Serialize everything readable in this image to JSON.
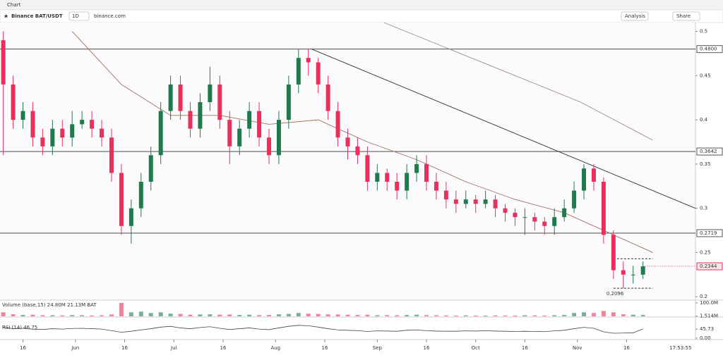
{
  "chart_data": {
    "type": "candlestick",
    "header": "Chart",
    "symbol": "Binance BAT/USDT",
    "interval": "1D",
    "source": "binance.com",
    "buttons": [
      "Analysis",
      "Share"
    ],
    "up_color": "#1f7a4d",
    "down_color": "#e8315a",
    "x": [
      -6,
      -3,
      0,
      3,
      6,
      9,
      12,
      15,
      18,
      21,
      24,
      27,
      30,
      33,
      36,
      39,
      42,
      45,
      48,
      51,
      54,
      57,
      60,
      63,
      66,
      69,
      72,
      75,
      78,
      81,
      84,
      87,
      90,
      93,
      96,
      99,
      102,
      105,
      108,
      111,
      114,
      117,
      120,
      123,
      126,
      129,
      132,
      135,
      138,
      141,
      144,
      147,
      150,
      153,
      156,
      159,
      162,
      165,
      168,
      171,
      174,
      177,
      180,
      183,
      186,
      189
    ],
    "open": [
      0.49,
      0.44,
      0.4,
      0.41,
      0.38,
      0.37,
      0.39,
      0.38,
      0.395,
      0.4,
      0.39,
      0.38,
      0.34,
      0.28,
      0.3,
      0.33,
      0.36,
      0.41,
      0.44,
      0.41,
      0.39,
      0.42,
      0.44,
      0.4,
      0.37,
      0.39,
      0.41,
      0.38,
      0.36,
      0.4,
      0.44,
      0.47,
      0.465,
      0.44,
      0.41,
      0.38,
      0.37,
      0.36,
      0.33,
      0.34,
      0.33,
      0.32,
      0.34,
      0.35,
      0.33,
      0.32,
      0.31,
      0.305,
      0.31,
      0.305,
      0.31,
      0.3,
      0.295,
      0.29,
      0.29,
      0.285,
      0.28,
      0.29,
      0.3,
      0.32,
      0.345,
      0.33,
      0.27,
      0.23,
      0.225,
      0.225
    ],
    "high": [
      0.5,
      0.45,
      0.42,
      0.42,
      0.39,
      0.4,
      0.4,
      0.41,
      0.41,
      0.41,
      0.4,
      0.39,
      0.35,
      0.31,
      0.34,
      0.37,
      0.42,
      0.45,
      0.45,
      0.42,
      0.43,
      0.46,
      0.45,
      0.41,
      0.4,
      0.42,
      0.42,
      0.39,
      0.41,
      0.45,
      0.48,
      0.48,
      0.47,
      0.45,
      0.42,
      0.39,
      0.38,
      0.37,
      0.35,
      0.345,
      0.34,
      0.35,
      0.36,
      0.36,
      0.34,
      0.33,
      0.32,
      0.32,
      0.315,
      0.32,
      0.315,
      0.305,
      0.3,
      0.3,
      0.295,
      0.29,
      0.3,
      0.31,
      0.33,
      0.35,
      0.35,
      0.335,
      0.275,
      0.24,
      0.235,
      0.24
    ],
    "low": [
      0.36,
      0.39,
      0.39,
      0.37,
      0.36,
      0.36,
      0.37,
      0.37,
      0.39,
      0.38,
      0.37,
      0.33,
      0.27,
      0.26,
      0.29,
      0.32,
      0.35,
      0.4,
      0.4,
      0.38,
      0.38,
      0.41,
      0.39,
      0.35,
      0.36,
      0.38,
      0.37,
      0.35,
      0.35,
      0.39,
      0.43,
      0.45,
      0.43,
      0.4,
      0.37,
      0.355,
      0.35,
      0.32,
      0.32,
      0.32,
      0.31,
      0.31,
      0.33,
      0.32,
      0.31,
      0.3,
      0.295,
      0.3,
      0.295,
      0.3,
      0.29,
      0.285,
      0.28,
      0.27,
      0.275,
      0.27,
      0.27,
      0.285,
      0.295,
      0.31,
      0.32,
      0.26,
      0.22,
      0.2096,
      0.215,
      0.22
    ],
    "close": [
      0.44,
      0.4,
      0.41,
      0.38,
      0.37,
      0.39,
      0.38,
      0.395,
      0.4,
      0.39,
      0.38,
      0.34,
      0.28,
      0.3,
      0.33,
      0.36,
      0.41,
      0.44,
      0.41,
      0.39,
      0.42,
      0.44,
      0.4,
      0.37,
      0.39,
      0.41,
      0.38,
      0.36,
      0.4,
      0.44,
      0.47,
      0.465,
      0.44,
      0.41,
      0.38,
      0.37,
      0.36,
      0.33,
      0.34,
      0.33,
      0.32,
      0.34,
      0.35,
      0.33,
      0.32,
      0.31,
      0.305,
      0.31,
      0.305,
      0.31,
      0.3,
      0.295,
      0.29,
      0.29,
      0.285,
      0.28,
      0.29,
      0.3,
      0.32,
      0.345,
      0.33,
      0.27,
      0.23,
      0.225,
      0.225,
      0.2344
    ],
    "xlim": [
      -7,
      205
    ],
    "xticks": [
      {
        "value": 0,
        "label": "16"
      },
      {
        "value": 16,
        "label": "Jun"
      },
      {
        "value": 31,
        "label": "16"
      },
      {
        "value": 46,
        "label": "Jul"
      },
      {
        "value": 61,
        "label": "16"
      },
      {
        "value": 77,
        "label": "Aug"
      },
      {
        "value": 92,
        "label": "16"
      },
      {
        "value": 108,
        "label": "Sep"
      },
      {
        "value": 123,
        "label": "16"
      },
      {
        "value": 138,
        "label": "Oct"
      },
      {
        "value": 153,
        "label": "16"
      },
      {
        "value": 169,
        "label": "Nov"
      },
      {
        "value": 184,
        "label": "16"
      }
    ],
    "ylim": [
      0.197,
      0.51
    ],
    "yticks": [
      0.5,
      0.45,
      0.4,
      0.35,
      0.3,
      0.25,
      0.2
    ],
    "levels": [
      {
        "value": 0.48,
        "label": "0.4800"
      },
      {
        "value": 0.3642,
        "label": "0.3642"
      },
      {
        "value": 0.2719,
        "label": "0.2719"
      }
    ],
    "last_price": 0.2344,
    "range_box": {
      "x": [
        180,
        192
      ],
      "values": [
        0.2096,
        0.243
      ]
    },
    "trendline": {
      "x": [
        88,
        205
      ],
      "values": [
        0.48,
        0.3
      ]
    },
    "overlays": [
      {
        "color": "#a0705a",
        "x": [
          15,
          30,
          45,
          60,
          75,
          90,
          105,
          120,
          135,
          150,
          165,
          180,
          192
        ],
        "values": [
          0.5,
          0.44,
          0.405,
          0.405,
          0.395,
          0.4,
          0.375,
          0.355,
          0.33,
          0.31,
          0.295,
          0.27,
          0.25
        ]
      },
      {
        "color": "#a08a80",
        "x": [
          110,
          130,
          150,
          170,
          192
        ],
        "values": [
          0.51,
          0.48,
          0.45,
          0.42,
          0.377
        ]
      }
    ],
    "volume": {
      "legend": "Volume (base,15) 24.80M 21.13M BAT",
      "values": [
        30,
        15,
        10,
        12,
        8,
        8,
        7,
        9,
        8,
        7,
        8,
        14,
        100,
        30,
        35,
        25,
        30,
        20,
        18,
        12,
        14,
        15,
        12,
        14,
        10,
        12,
        9,
        10,
        15,
        18,
        25,
        20,
        18,
        15,
        14,
        12,
        10,
        12,
        8,
        9,
        8,
        10,
        12,
        9,
        8,
        7,
        6,
        7,
        6,
        6,
        7,
        6,
        6,
        8,
        7,
        6,
        8,
        10,
        25,
        30,
        25,
        40,
        30,
        15,
        12,
        10
      ],
      "ylim": [
        0,
        110
      ],
      "ticks": [
        {
          "value": 100,
          "label": "100.0M"
        },
        {
          "value": 1.514,
          "label": "1.514M"
        }
      ]
    },
    "rsi": {
      "legend": "RSI (14) 46.75",
      "color": "#444444",
      "values": [
        55,
        48,
        50,
        45,
        44,
        48,
        46,
        49,
        50,
        48,
        46,
        38,
        30,
        35,
        42,
        48,
        56,
        60,
        52,
        48,
        54,
        58,
        50,
        44,
        48,
        52,
        46,
        43,
        52,
        60,
        65,
        63,
        56,
        48,
        42,
        40,
        38,
        34,
        37,
        36,
        35,
        40,
        42,
        38,
        36,
        35,
        35,
        37,
        36,
        38,
        36,
        35,
        34,
        35,
        34,
        33,
        37,
        40,
        48,
        55,
        50,
        32,
        25,
        26,
        27,
        46.75
      ],
      "ylim": [
        0,
        100
      ],
      "ticks": [
        45.73,
        {
          "value": 0,
          "label": "0.00"
        }
      ]
    },
    "time": "17:53:55"
  }
}
